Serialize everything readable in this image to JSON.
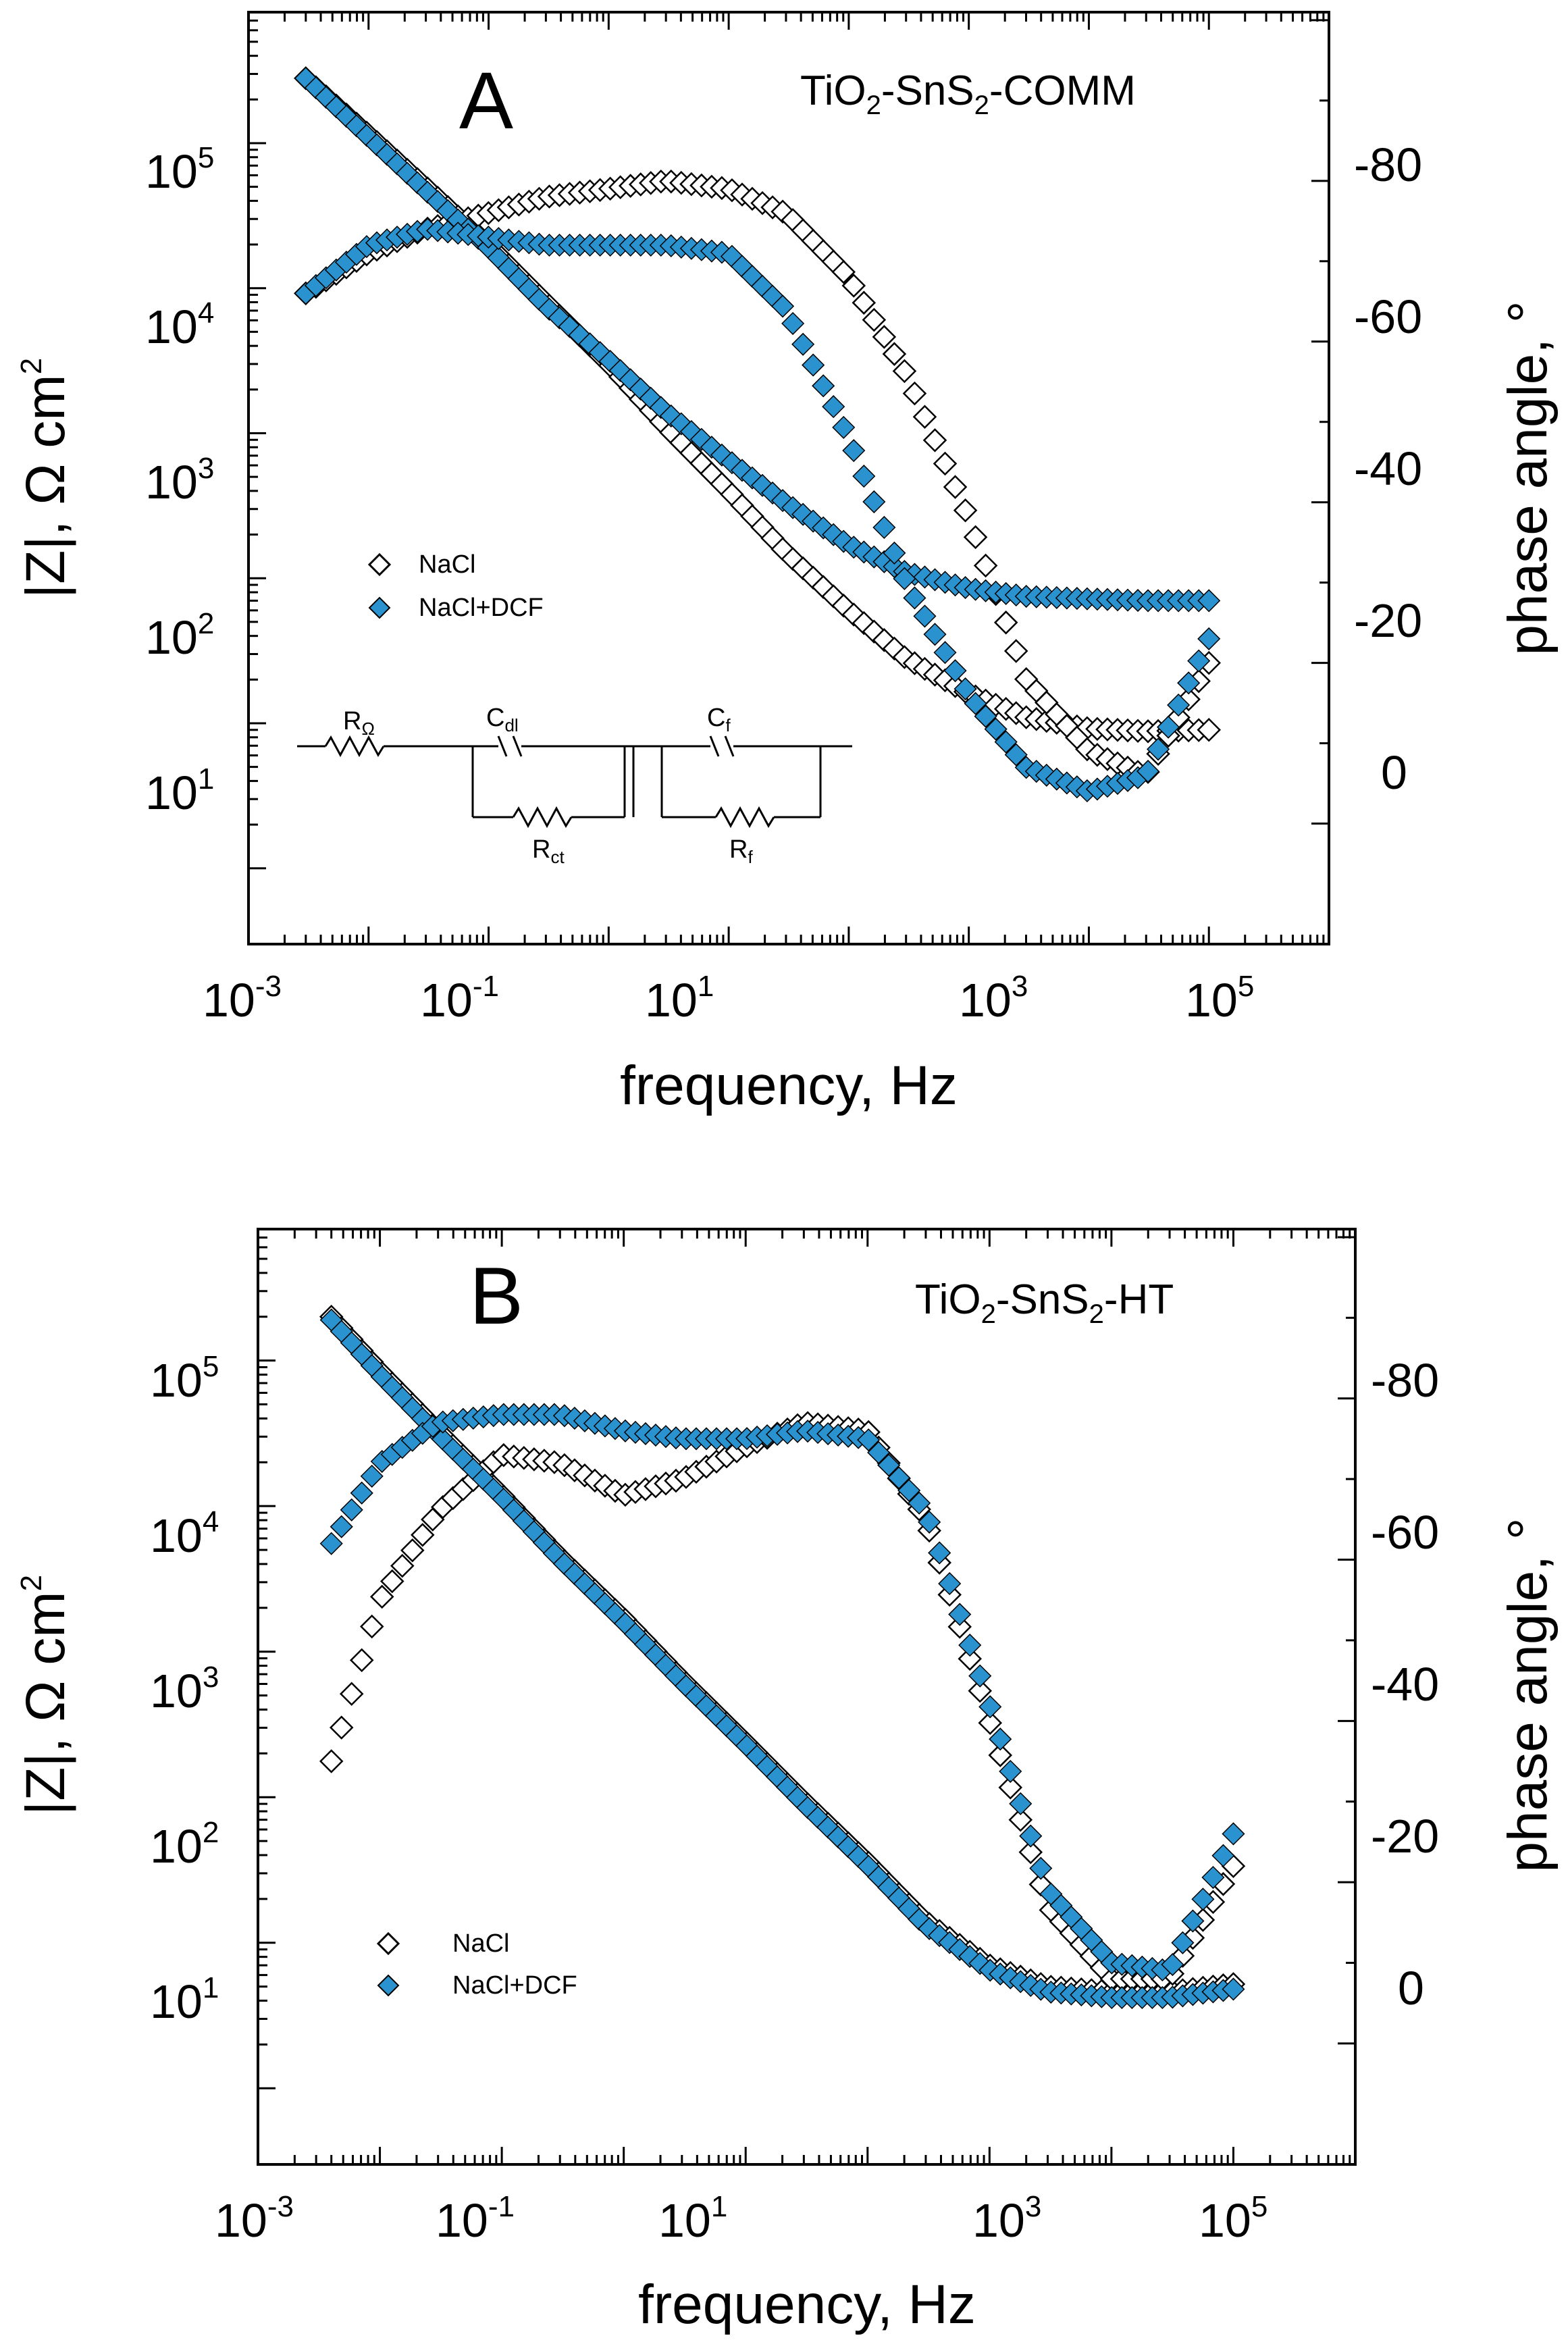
{
  "colors": {
    "nacl": "#ffffff",
    "dcf": "#2a93cf",
    "outline": "#000000"
  },
  "chart_data": [
    {
      "type": "scatter",
      "panel_letter": "A",
      "sample_label": {
        "parts": [
          "TiO",
          "2",
          "-SnS",
          "2",
          "-COMM"
        ]
      },
      "xlabel": "frequency, Hz",
      "ylabel_left": {
        "a": "|Z|, Ω cm",
        "b": "2"
      },
      "ylabel_right": "phase angle, °",
      "x_scale": "log",
      "x_ticks": [
        {
          "base": "10",
          "exp": "-3"
        },
        {
          "base": "10",
          "exp": "-1"
        },
        {
          "base": "10",
          "exp": "1"
        },
        {
          "base": "10",
          "exp": "3"
        },
        {
          "base": "10",
          "exp": "5"
        }
      ],
      "left_ticks": [
        {
          "base": "10",
          "exp": "5"
        },
        {
          "base": "10",
          "exp": "4"
        },
        {
          "base": "10",
          "exp": "3"
        },
        {
          "base": "10",
          "exp": "2"
        },
        {
          "base": "10",
          "exp": "1"
        }
      ],
      "right_ticks": [
        "-80",
        "-60",
        "-40",
        "-20",
        "0"
      ],
      "xlim": [
        0.001,
        1000000
      ],
      "ylim_left": [
        0.3,
        800000
      ],
      "ylim_right": [
        15,
        -101
      ],
      "legend": [
        "NaCl",
        "NaCl+DCF"
      ],
      "circuit": {
        "r_omega": "R",
        "r_omega_sub": "Ω",
        "c_dl": "C",
        "c_dl_sub": "dl",
        "r_ct": "R",
        "r_ct_sub": "ct",
        "c_f": "C",
        "c_f_sub": "f",
        "r_f": "R",
        "r_f_sub": "f"
      },
      "series": [
        {
          "name": "NaCl",
          "quantity": "|Z|",
          "x": [
            0.003,
            0.01,
            0.03,
            0.1,
            0.3,
            1,
            3,
            10,
            30,
            100,
            300,
            1000,
            3000,
            10000,
            30000,
            100000
          ],
          "y": [
            280000,
            115000,
            50000,
            20000,
            8000,
            3000,
            1100,
            400,
            150,
            60,
            28,
            16,
            11,
            9.2,
            8.8,
            9.0
          ]
        },
        {
          "name": "NaCl+DCF",
          "quantity": "|Z|",
          "x": [
            0.003,
            0.01,
            0.03,
            0.1,
            0.3,
            1,
            3,
            10,
            30,
            100,
            300,
            1000,
            3000,
            10000,
            30000,
            100000
          ],
          "y": [
            280000,
            110000,
            47000,
            19000,
            7500,
            3200,
            1400,
            650,
            330,
            170,
            110,
            85,
            75,
            72,
            70,
            70
          ]
        },
        {
          "name": "NaCl",
          "quantity": "phase",
          "x": [
            0.003,
            0.01,
            0.03,
            0.1,
            0.3,
            1,
            3,
            10,
            30,
            100,
            300,
            1000,
            3000,
            10000,
            30000,
            100000
          ],
          "y": [
            -66,
            -71,
            -74,
            -76,
            -78,
            -79,
            -80,
            -79,
            -76,
            -68,
            -56,
            -38,
            -18,
            -9,
            -6,
            -20
          ]
        },
        {
          "name": "NaCl+DCF",
          "quantity": "phase",
          "x": [
            0.003,
            0.01,
            0.03,
            0.1,
            0.3,
            1,
            3,
            10,
            30,
            100,
            300,
            1000,
            3000,
            10000,
            30000,
            100000
          ],
          "y": [
            -66,
            -72,
            -74,
            -73,
            -72,
            -72,
            -72,
            -71,
            -64,
            -48,
            -30,
            -16,
            -7,
            -4,
            -6,
            -23
          ]
        }
      ]
    },
    {
      "type": "scatter",
      "panel_letter": "B",
      "sample_label": {
        "parts": [
          "TiO",
          "2",
          "-SnS",
          "2",
          "-HT"
        ]
      },
      "xlabel": "frequency, Hz",
      "ylabel_left": {
        "a": "|Z|, Ω cm",
        "b": "2"
      },
      "ylabel_right": "phase angle, °",
      "x_scale": "log",
      "x_ticks": [
        {
          "base": "10",
          "exp": "-3"
        },
        {
          "base": "10",
          "exp": "-1"
        },
        {
          "base": "10",
          "exp": "1"
        },
        {
          "base": "10",
          "exp": "3"
        },
        {
          "base": "10",
          "exp": "5"
        }
      ],
      "left_ticks": [
        {
          "base": "10",
          "exp": "5"
        },
        {
          "base": "10",
          "exp": "4"
        },
        {
          "base": "10",
          "exp": "3"
        },
        {
          "base": "10",
          "exp": "2"
        },
        {
          "base": "10",
          "exp": "1"
        }
      ],
      "right_ticks": [
        "-80",
        "-60",
        "-40",
        "-20",
        "0"
      ],
      "xlim": [
        0.001,
        1000000
      ],
      "ylim_left": [
        0.3,
        800000
      ],
      "ylim_right": [
        15,
        -101
      ],
      "legend": [
        "NaCl",
        "NaCl+DCF"
      ],
      "series": [
        {
          "name": "NaCl",
          "quantity": "|Z|",
          "x": [
            0.004,
            0.01,
            0.03,
            0.1,
            0.3,
            1,
            3,
            10,
            30,
            100,
            300,
            1000,
            3000,
            10000,
            30000,
            100000
          ],
          "y": [
            200000,
            85000,
            33000,
            12000,
            4500,
            1700,
            650,
            240,
            95,
            36,
            14,
            7,
            5,
            4.6,
            4.6,
            5.2
          ]
        },
        {
          "name": "NaCl+DCF",
          "quantity": "|Z|",
          "x": [
            0.004,
            0.01,
            0.03,
            0.1,
            0.3,
            1,
            3,
            10,
            30,
            100,
            300,
            1000,
            3000,
            10000,
            30000,
            100000
          ],
          "y": [
            190000,
            80000,
            31000,
            11500,
            4300,
            1600,
            620,
            230,
            90,
            34,
            13,
            6.5,
            4.6,
            4.2,
            4.2,
            4.8
          ]
        },
        {
          "name": "NaCl",
          "quantity": "phase",
          "x": [
            0.004,
            0.01,
            0.03,
            0.1,
            0.3,
            1,
            3,
            10,
            30,
            100,
            300,
            1000,
            3000,
            10000,
            30000,
            100000
          ],
          "y": [
            -35,
            -55,
            -66,
            -73,
            -72,
            -68,
            -70,
            -74,
            -77,
            -76,
            -65,
            -40,
            -17,
            -8,
            -8,
            -22
          ]
        },
        {
          "name": "NaCl+DCF",
          "quantity": "phase",
          "x": [
            0.004,
            0.01,
            0.03,
            0.1,
            0.3,
            1,
            3,
            10,
            30,
            100,
            300,
            1000,
            3000,
            10000,
            30000,
            100000
          ],
          "y": [
            -62,
            -72,
            -77,
            -78,
            -78,
            -76,
            -75,
            -75,
            -76,
            -75,
            -66,
            -42,
            -19,
            -10,
            -9,
            -26
          ]
        }
      ]
    }
  ]
}
